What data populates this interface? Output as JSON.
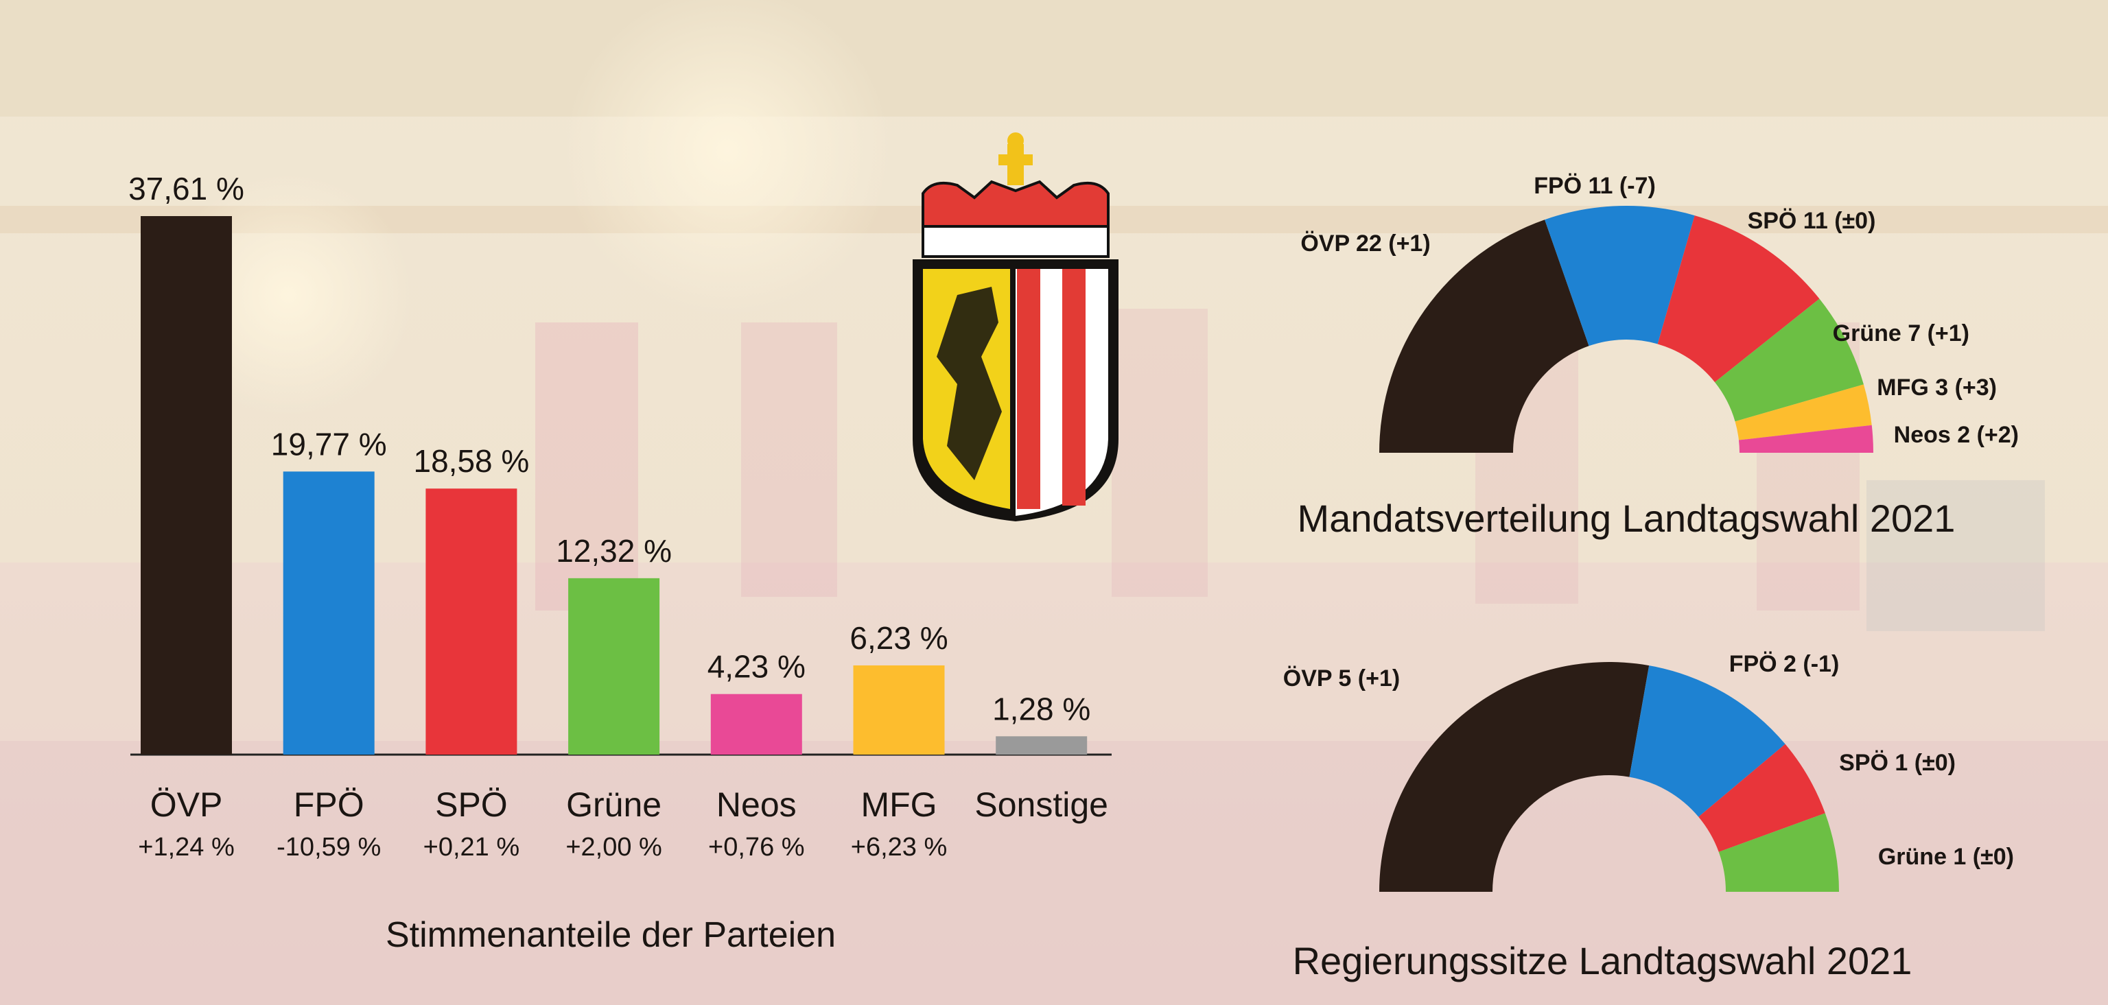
{
  "colors": {
    "ovp": "#2b1d16",
    "fpo": "#1e82d2",
    "spo": "#e8353a",
    "grune": "#6cbf44",
    "neos": "#e94996",
    "mfg": "#fdbd2e",
    "sonstige": "#9a9a9a"
  },
  "chart_data": [
    {
      "type": "bar",
      "title": "Stimmenanteile der Parteien",
      "categories": [
        "ÖVP",
        "FPÖ",
        "SPÖ",
        "Grüne",
        "Neos",
        "MFG",
        "Sonstige"
      ],
      "values": [
        37.61,
        19.77,
        18.58,
        12.32,
        4.23,
        6.23,
        1.28
      ],
      "value_labels": [
        "37,61 %",
        "19,77 %",
        "18,58 %",
        "12,32 %",
        "4,23 %",
        "6,23 %",
        "1,28 %"
      ],
      "change_labels": [
        "+1,24 %",
        "-10,59 %",
        "+0,21 %",
        "+2,00 %",
        "+0,76 %",
        "+6,23 %",
        ""
      ],
      "series_colors": [
        "ovp",
        "fpo",
        "spo",
        "grune",
        "neos",
        "mfg",
        "sonstige"
      ],
      "ylim": [
        0,
        40
      ]
    },
    {
      "type": "pie",
      "subtype": "parliament-half-donut",
      "title": "Mandatsverteilung Landtagswahl 2021",
      "categories": [
        "ÖVP",
        "FPÖ",
        "SPÖ",
        "Grüne",
        "MFG",
        "Neos"
      ],
      "values": [
        22,
        11,
        11,
        7,
        3,
        2
      ],
      "labels": [
        "ÖVP 22 (+1)",
        "FPÖ 11 (-7)",
        "SPÖ 11 (±0)",
        "Grüne 7 (+1)",
        "MFG 3 (+3)",
        "Neos 2 (+2)"
      ],
      "series_colors": [
        "ovp",
        "fpo",
        "spo",
        "grune",
        "mfg",
        "neos"
      ]
    },
    {
      "type": "pie",
      "subtype": "parliament-half-donut",
      "title": "Regierungssitze Landtagswahl 2021",
      "categories": [
        "ÖVP",
        "FPÖ",
        "SPÖ",
        "Grüne"
      ],
      "values": [
        5,
        2,
        1,
        1
      ],
      "labels": [
        "ÖVP 5 (+1)",
        "FPÖ 2 (-1)",
        "SPÖ 1 (±0)",
        "Grüne 1 (±0)"
      ],
      "series_colors": [
        "ovp",
        "fpo",
        "spo",
        "grune"
      ]
    }
  ]
}
